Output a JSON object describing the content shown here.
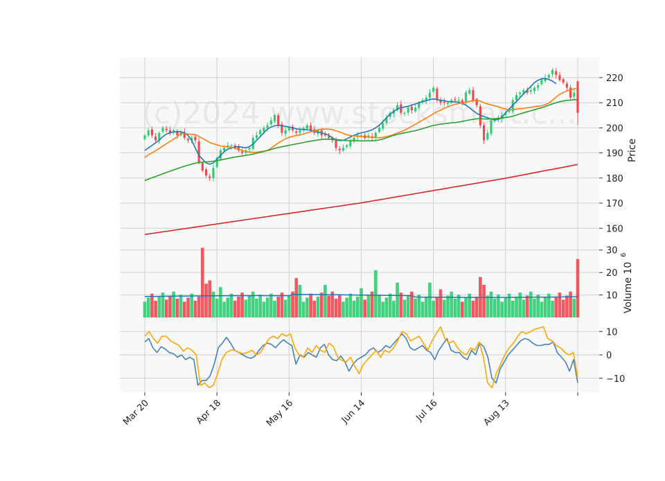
{
  "chart_data": {
    "type": "candlestick",
    "watermark": "(c)2024 www.stocksmart.c...",
    "colors": {
      "up": "#2ecc71",
      "down": "#f0474f",
      "ma_fast": "#1f77b4",
      "ma_mid": "#ff7f0e",
      "ma_slow": "#2ca02c",
      "ma_long": "#d62728",
      "volume_ma": "#1f77b4",
      "osc_a": "#4682b4",
      "osc_b": "#ffa500",
      "panel_bg": "#f8f8f8",
      "grid": "#d0d0d0"
    },
    "x_ticks": [
      {
        "i": 0,
        "label": "Mar 20"
      },
      {
        "i": 20,
        "label": "Apr 18"
      },
      {
        "i": 40,
        "label": "May 16"
      },
      {
        "i": 60,
        "label": "Jun 14"
      },
      {
        "i": 80,
        "label": "Jul 16"
      },
      {
        "i": 100,
        "label": "Aug 13"
      },
      {
        "i": 120,
        "label": ""
      }
    ],
    "price_panel": {
      "ylabel": "Price",
      "yticks": [
        160,
        170,
        180,
        190,
        200,
        210,
        220
      ],
      "ylim": [
        154,
        228
      ],
      "closes": [
        197,
        199,
        197,
        195,
        198,
        200,
        199,
        198,
        199,
        197,
        198,
        196,
        195,
        196,
        195,
        186,
        183,
        181,
        180,
        184,
        188,
        191,
        192,
        193,
        193,
        192,
        191,
        190,
        191,
        192,
        196,
        197,
        199,
        200,
        201,
        203,
        205,
        201,
        198,
        199,
        200,
        199,
        198,
        199,
        200,
        201,
        199,
        198,
        199,
        197,
        197,
        196,
        195,
        192,
        191,
        192,
        193,
        195,
        196,
        197,
        197,
        196,
        197,
        196,
        198,
        200,
        202,
        204,
        206,
        207,
        209,
        206,
        206,
        208,
        207,
        208,
        210,
        211,
        212,
        214,
        216,
        211,
        210,
        210,
        210,
        211,
        211,
        211,
        210,
        214,
        215,
        211,
        209,
        201,
        195,
        198,
        203,
        203,
        204,
        205,
        206,
        207,
        211,
        213,
        214,
        215,
        214,
        215,
        216,
        217,
        219,
        220,
        221,
        223,
        221,
        219,
        218,
        216,
        212,
        214,
        206
      ],
      "ma_fast": [
        191,
        192,
        193,
        194,
        195,
        196.5,
        197.5,
        198,
        198.3,
        198.5,
        198.4,
        198,
        197,
        195,
        192,
        189,
        187.5,
        186,
        185.5,
        186,
        187.5,
        189,
        190.5,
        191.5,
        192,
        192.3,
        192.5,
        192.3,
        192,
        192.5,
        193.5,
        195,
        196.5,
        198,
        199.5,
        200.3,
        200.8,
        201,
        200.8,
        200.6,
        200.3,
        200,
        199.6,
        199.4,
        199.3,
        199.2,
        199,
        198.6,
        198.3,
        198,
        197.6,
        197,
        196,
        195.2,
        194.9,
        195,
        195.6,
        196.4,
        197,
        197.6,
        198,
        198.3,
        198.7,
        199.2,
        200,
        201,
        202.5,
        204,
        205.5,
        206.5,
        207.5,
        208,
        208.3,
        208.6,
        209,
        209.5,
        210,
        210.4,
        210.8,
        211.3,
        211.5,
        211.3,
        211,
        210.8,
        210.5,
        210.4,
        210.3,
        210.2,
        209.8,
        209,
        208,
        206.8,
        205.8,
        205,
        204.5,
        204,
        203.5,
        203.2,
        203.3,
        204.2,
        206,
        207.5,
        209,
        210.5,
        212,
        213.5,
        215,
        216.5,
        218,
        219,
        219.5,
        219.6,
        219.3,
        218.6,
        217.6
      ]
    },
    "volume_panel": {
      "ylabel": "Volume",
      "yunit": "10^6",
      "yticks": [
        10,
        20,
        30
      ],
      "ylim": [
        0,
        33
      ],
      "volume_ma_note": "approx. 9.3 rising slightly to 10.2 then easing to 9.7"
    },
    "oscillator_panel": {
      "yticks": [
        -10,
        0,
        10
      ],
      "ylim": [
        -16,
        16
      ],
      "series_a": [
        5.5,
        7,
        3,
        1,
        3.5,
        2.5,
        1,
        0.5,
        -1,
        0,
        -2,
        -1,
        -2,
        -13,
        -11,
        -11,
        -9,
        -4,
        3,
        5,
        7.5,
        5,
        2,
        1,
        0,
        -1,
        -1.5,
        -0.5,
        2,
        4,
        5,
        4.5,
        3,
        5,
        6.5,
        5,
        4,
        -4,
        0,
        -1,
        1,
        0,
        -1,
        3,
        4.5,
        0,
        -2,
        -2.5,
        -0.5,
        -3,
        -7,
        -4,
        -2,
        -1,
        0,
        2,
        3,
        1,
        2,
        4,
        3,
        5,
        7,
        9,
        7,
        3,
        2,
        3,
        4,
        2,
        1,
        -2,
        2,
        4.5,
        7,
        2,
        1,
        1,
        -1,
        -2,
        2,
        0,
        5,
        3.5,
        -1,
        -10,
        -12,
        -6,
        -3,
        0,
        2,
        4,
        6,
        7,
        6.5,
        5,
        4,
        4,
        4.5,
        4.5,
        5.5,
        1,
        -1,
        -3,
        -7,
        -2,
        -12
      ],
      "series_b": [
        8,
        10,
        7,
        5,
        8,
        8,
        6,
        5,
        4,
        1.5,
        3,
        2,
        0,
        -13,
        -12,
        -14,
        -13,
        -8,
        -2,
        1,
        2,
        2,
        1,
        0.5,
        1,
        2,
        0,
        1,
        4,
        7,
        8,
        7,
        9,
        8,
        9,
        3,
        0,
        -1,
        3,
        1,
        4,
        2,
        1,
        5,
        3.5,
        -1,
        -2.5,
        -3,
        -1,
        -5,
        -8,
        -4,
        -2,
        0,
        2,
        -1,
        2,
        1,
        3,
        6,
        10,
        9,
        6,
        7,
        8,
        5,
        2,
        6,
        9,
        12,
        7,
        5,
        6,
        3,
        1,
        0,
        3,
        2,
        5.5,
        -1,
        -12,
        -14,
        -8,
        -4,
        0,
        3,
        5,
        8,
        10,
        9,
        10,
        11,
        11.5,
        12,
        7,
        6,
        4,
        3,
        1,
        0,
        1,
        -10
      ]
    }
  }
}
